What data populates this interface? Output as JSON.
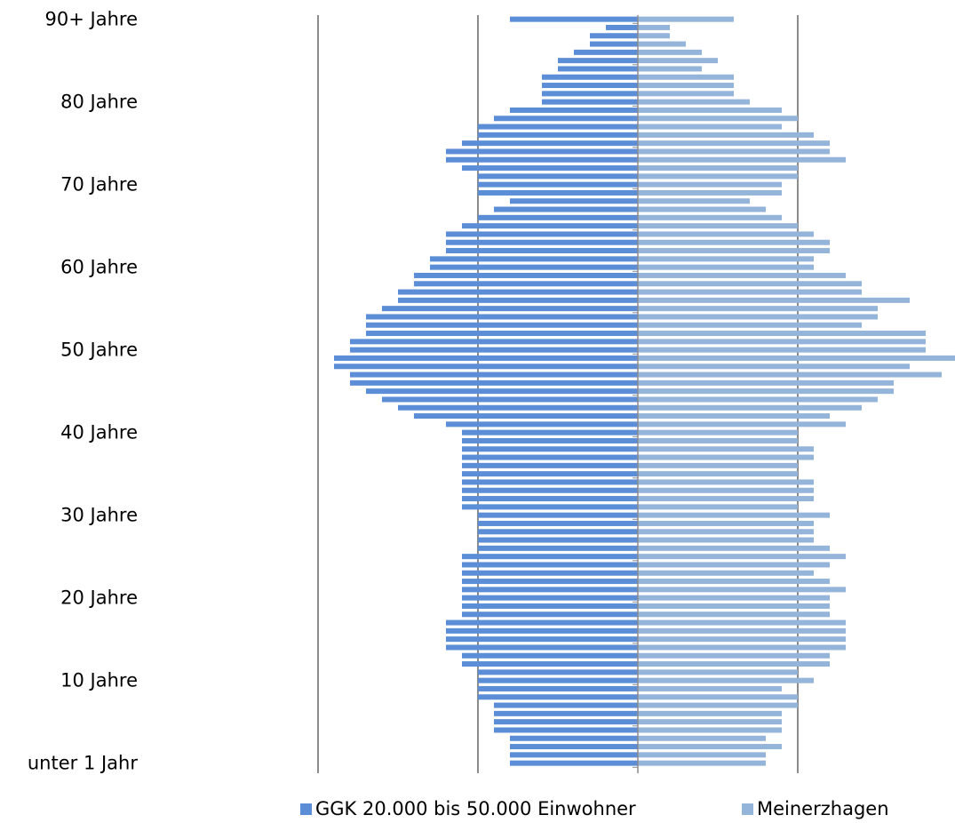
{
  "chart_data": {
    "type": "bar",
    "orientation": "horizontal-population-pyramid",
    "y_tick_labels": [
      "90+ Jahre",
      "80 Jahre",
      "70 Jahre",
      "60 Jahre",
      "50 Jahre",
      "40 Jahre",
      "30 Jahre",
      "20 Jahre",
      "10 Jahre",
      "unter 1 Jahr"
    ],
    "age_groups": [
      90,
      89,
      88,
      87,
      86,
      85,
      84,
      83,
      82,
      81,
      80,
      79,
      78,
      77,
      76,
      75,
      74,
      73,
      72,
      71,
      70,
      69,
      68,
      67,
      66,
      65,
      64,
      63,
      62,
      61,
      60,
      59,
      58,
      57,
      56,
      55,
      54,
      53,
      52,
      51,
      50,
      49,
      48,
      47,
      46,
      45,
      44,
      43,
      42,
      41,
      40,
      39,
      38,
      37,
      36,
      35,
      34,
      33,
      32,
      31,
      30,
      29,
      28,
      27,
      26,
      25,
      24,
      23,
      22,
      21,
      20,
      19,
      18,
      17,
      16,
      15,
      14,
      13,
      12,
      11,
      10,
      9,
      8,
      7,
      6,
      5,
      4,
      3,
      2,
      1,
      0
    ],
    "xlim": [
      -2.0,
      2.0
    ],
    "grid": true,
    "series": [
      {
        "name": "GGK 20.000 bis 50.000 Einwohner",
        "color": "#5B8ED6",
        "side": "left",
        "values": [
          0.8,
          0.2,
          0.3,
          0.3,
          0.4,
          0.5,
          0.5,
          0.6,
          0.6,
          0.6,
          0.6,
          0.8,
          0.9,
          1.0,
          1.0,
          1.1,
          1.2,
          1.2,
          1.1,
          1.0,
          1.0,
          1.0,
          0.8,
          0.9,
          1.0,
          1.1,
          1.2,
          1.2,
          1.2,
          1.3,
          1.3,
          1.4,
          1.4,
          1.5,
          1.5,
          1.6,
          1.7,
          1.7,
          1.7,
          1.8,
          1.8,
          1.9,
          1.9,
          1.8,
          1.8,
          1.7,
          1.6,
          1.5,
          1.4,
          1.2,
          1.1,
          1.1,
          1.1,
          1.1,
          1.1,
          1.1,
          1.1,
          1.1,
          1.1,
          1.1,
          1.0,
          1.0,
          1.0,
          1.0,
          1.0,
          1.1,
          1.1,
          1.1,
          1.1,
          1.1,
          1.1,
          1.1,
          1.1,
          1.2,
          1.2,
          1.2,
          1.2,
          1.1,
          1.1,
          1.0,
          1.0,
          1.0,
          1.0,
          0.9,
          0.9,
          0.9,
          0.9,
          0.8,
          0.8,
          0.8,
          0.8
        ]
      },
      {
        "name": "Meinerzhagen",
        "color": "#94B4D9",
        "side": "right",
        "values": [
          0.6,
          0.2,
          0.2,
          0.3,
          0.4,
          0.5,
          0.4,
          0.6,
          0.6,
          0.6,
          0.7,
          0.9,
          1.0,
          0.9,
          1.1,
          1.2,
          1.2,
          1.3,
          1.0,
          1.0,
          0.9,
          0.9,
          0.7,
          0.8,
          0.9,
          1.0,
          1.1,
          1.2,
          1.2,
          1.1,
          1.1,
          1.3,
          1.4,
          1.4,
          1.7,
          1.5,
          1.5,
          1.4,
          1.8,
          1.8,
          1.8,
          2.0,
          1.7,
          1.9,
          1.6,
          1.6,
          1.5,
          1.4,
          1.2,
          1.3,
          1.0,
          1.0,
          1.1,
          1.1,
          1.0,
          1.0,
          1.1,
          1.1,
          1.1,
          1.0,
          1.2,
          1.1,
          1.1,
          1.1,
          1.2,
          1.3,
          1.2,
          1.1,
          1.2,
          1.3,
          1.2,
          1.2,
          1.2,
          1.3,
          1.3,
          1.3,
          1.3,
          1.2,
          1.2,
          1.0,
          1.1,
          0.9,
          1.0,
          1.0,
          0.9,
          0.9,
          0.9,
          0.8,
          0.9,
          0.8,
          0.8
        ]
      }
    ]
  }
}
